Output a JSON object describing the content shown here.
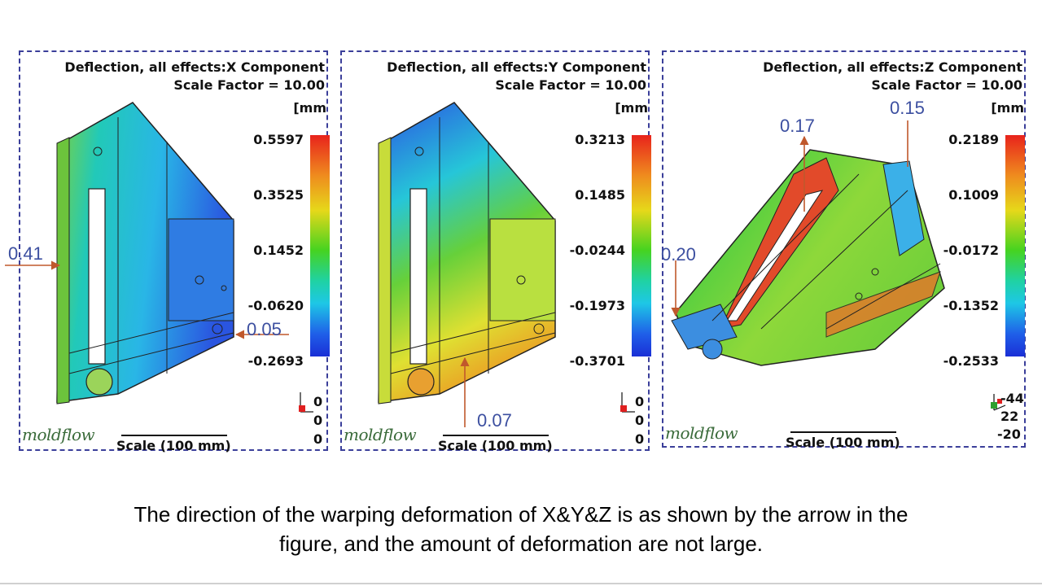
{
  "panels": [
    {
      "title_line1": "Deflection, all effects:X Component",
      "title_line2": "Scale Factor = 10.00",
      "unit": "[mm",
      "ticks": [
        "0.5597",
        "0.3525",
        "0.1452",
        "-0.0620",
        "-0.2693"
      ],
      "scale_label": "Scale (100 mm)",
      "logo_text": "moldflow",
      "axis_values": [
        "0",
        "0",
        "0"
      ]
    },
    {
      "title_line1": "Deflection, all effects:Y Component",
      "title_line2": "Scale Factor = 10.00",
      "unit": "[mm",
      "ticks": [
        "0.3213",
        "0.1485",
        "-0.0244",
        "-0.1973",
        "-0.3701"
      ],
      "scale_label": "Scale (100 mm)",
      "logo_text": "moldflow",
      "axis_values": [
        "0",
        "0",
        "0"
      ]
    },
    {
      "title_line1": "Deflection, all effects:Z Component",
      "title_line2": "Scale Factor = 10.00",
      "unit": "[mm",
      "ticks": [
        "0.2189",
        "0.1009",
        "-0.0172",
        "-0.1352",
        "-0.2533"
      ],
      "scale_label": "Scale (100 mm)",
      "logo_text": "moldflow",
      "axis_values": [
        "-44",
        "22",
        "-20"
      ]
    }
  ],
  "annotations": {
    "x_left": "0.41",
    "x_right": "0.05",
    "y_bottom": "0.07",
    "z_top_left": "0.17",
    "z_top_right": "0.15",
    "z_left": "0.20"
  },
  "caption": {
    "line1": "The direction of the warping deformation of X&Y&Z is as shown by the arrow in the",
    "line2": "figure, and the amount of deformation are not large."
  },
  "colors": {
    "panel_border": "#3b3f9a",
    "annotation_text": "#3c4fa0",
    "arrow": "#c0582c"
  }
}
